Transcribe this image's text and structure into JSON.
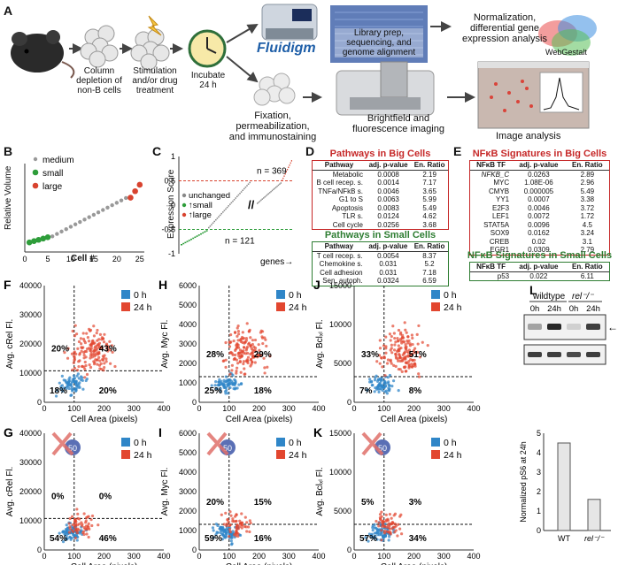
{
  "panelA": {
    "label": "A",
    "step1": "Column\ndepletion of\nnon-B cells",
    "step2": "Stimulation\nand/or drug\ntreatment",
    "step3": "Incubate\n24 h",
    "fluidigm": "Fluidigm",
    "lib": "Library prep,\nsequencing, and\ngenome alignment",
    "norm": "Normalization,\ndifferential gene\nexpression analysis",
    "webgestalt": "WebGestalt",
    "fix": "Fixation,\npermeabilization,\nand immunostaining",
    "bright": "Brightfield and\nfluorescence imaging",
    "image": "Image analysis"
  },
  "panelB": {
    "label": "B",
    "ylabel": "Relative Volume",
    "xlabel": "Cell #",
    "legend": [
      "medium",
      "small",
      "large"
    ]
  },
  "panelC": {
    "label": "C",
    "ylabel": "Expression Score",
    "n_top": "n = 369",
    "n_bot": "n = 121",
    "legend": [
      "unchanged",
      "↑small",
      "↑large"
    ],
    "xlabel": "genes→",
    "break": "//"
  },
  "panelD": {
    "label": "D",
    "big_title": "Pathways in Big Cells",
    "small_title": "Pathways in Small Cells",
    "headers": [
      "Pathway",
      "adj. p-value",
      "En. Ratio"
    ],
    "big_rows": [
      [
        "Metabolic",
        "0.0008",
        "2.19"
      ],
      [
        "B cell recep. s.",
        "0.0014",
        "7.17"
      ],
      [
        "TNFa/NFkB s.",
        "0.0046",
        "3.65"
      ],
      [
        "G1 to S",
        "0.0063",
        "5.99"
      ],
      [
        "Apoptosis",
        "0.0083",
        "5.49"
      ],
      [
        "TLR s.",
        "0.0124",
        "4.62"
      ],
      [
        "Cell cycle",
        "0.0256",
        "3.68"
      ]
    ],
    "small_rows": [
      [
        "T cell recep. s.",
        "0.0054",
        "8.37"
      ],
      [
        "Chemokine s.",
        "0.031",
        "5.2"
      ],
      [
        "Cell adhesion",
        "0.031",
        "7.18"
      ],
      [
        "Sen. autoph.",
        "0.0324",
        "6.59"
      ]
    ]
  },
  "panelE": {
    "label": "E",
    "big_title": "NFκB Signatures in Big Cells",
    "small_title": "NFκB Signatures in Small Cells",
    "headers": [
      "NFκB TF",
      "adj. p-value",
      "En. Ratio"
    ],
    "big_rows": [
      [
        "NFKB_C",
        "0.0263",
        "2.89"
      ],
      [
        "MYC",
        "1.08E-06",
        "2.96"
      ],
      [
        "CMYB",
        "0.000005",
        "5.49"
      ],
      [
        "YY1",
        "0.0007",
        "3.38"
      ],
      [
        "E2F3",
        "0.0046",
        "3.72"
      ],
      [
        "LEF1",
        "0.0072",
        "1.72"
      ],
      [
        "STAT5A",
        "0.0096",
        "4.5"
      ],
      [
        "SOX9",
        "0.0162",
        "3.24"
      ],
      [
        "CREB",
        "0.02",
        "3.1"
      ],
      [
        "EGR1",
        "0.0309",
        "2.79"
      ]
    ],
    "small_rows": [
      [
        "p53",
        "0.022",
        "6.11"
      ]
    ]
  },
  "scatter": {
    "legend_0h": "0 h",
    "legend_24h": "24 h",
    "xlabel": "Cell Area (pixels)",
    "inhib": "50",
    "colors": {
      "blue": "#2f86c8",
      "red": "#e2462f"
    },
    "panels": [
      {
        "id": "F",
        "ylabel": "Avg. cRel Fl.",
        "yticks": [
          "0",
          "10000",
          "20000",
          "30000",
          "40000"
        ],
        "q": [
          "20%",
          "43%",
          "18%",
          "20%"
        ]
      },
      {
        "id": "H",
        "ylabel": "Avg. Myc Fl.",
        "yticks": [
          "0",
          "1000",
          "2000",
          "3000",
          "4000",
          "5000",
          "6000"
        ],
        "q": [
          "28%",
          "29%",
          "25%",
          "18%"
        ]
      },
      {
        "id": "J",
        "ylabel": "Avg. Bclₓₗ Fl.",
        "yticks": [
          "0",
          "5000",
          "10000",
          "15000"
        ],
        "q": [
          "33%",
          "51%",
          "7%",
          "8%"
        ]
      },
      {
        "id": "G",
        "ylabel": "Avg. cRel Fl.",
        "yticks": [
          "0",
          "10000",
          "20000",
          "30000",
          "40000"
        ],
        "q": [
          "0%",
          "0%",
          "54%",
          "46%"
        ]
      },
      {
        "id": "I",
        "ylabel": "Avg. Myc Fl.",
        "yticks": [
          "0",
          "1000",
          "2000",
          "3000",
          "4000",
          "5000",
          "6000"
        ],
        "q": [
          "20%",
          "15%",
          "59%",
          "16%"
        ]
      },
      {
        "id": "K",
        "ylabel": "Avg. Bclₓₗ Fl.",
        "yticks": [
          "0",
          "5000",
          "10000",
          "15000"
        ],
        "q": [
          "5%",
          "3%",
          "57%",
          "34%"
        ]
      }
    ],
    "xticks": [
      "0",
      "100",
      "200",
      "300",
      "400"
    ]
  },
  "panelL": {
    "label": "L",
    "wildtype": "wildtype",
    "rel": "rel⁻/⁻",
    "lanes": [
      "0h",
      "24h",
      "0h",
      "24h"
    ],
    "ylabel": "Normalized pS6 at 24h",
    "bars": [
      {
        "name": "WT",
        "value": 4.5
      },
      {
        "name": "rel⁻/⁻",
        "value": 1.6
      }
    ],
    "ymax": 5,
    "yticks": [
      "0",
      "1",
      "2",
      "3",
      "4",
      "5"
    ],
    "arrow": "←"
  }
}
